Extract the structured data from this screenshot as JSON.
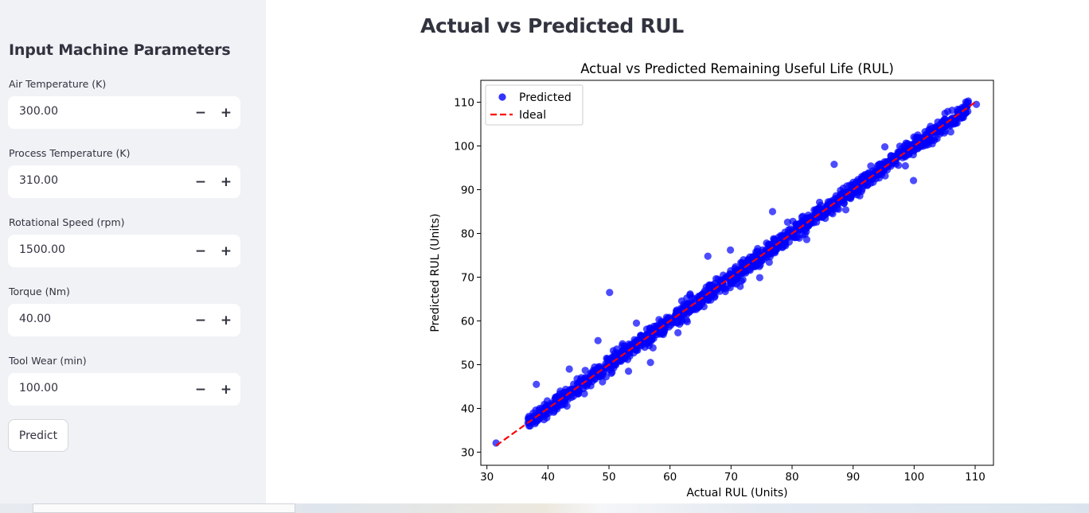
{
  "sidebar": {
    "title": "Input Machine Parameters",
    "fields": [
      {
        "label": "Air Temperature (K)",
        "value": "300.00"
      },
      {
        "label": "Process Temperature (K)",
        "value": "310.00"
      },
      {
        "label": "Rotational Speed (rpm)",
        "value": "1500.00"
      },
      {
        "label": "Torque (Nm)",
        "value": "40.00"
      },
      {
        "label": "Tool Wear (min)",
        "value": "100.00"
      }
    ],
    "minus_glyph": "−",
    "plus_glyph": "+",
    "predict_label": "Predict"
  },
  "main": {
    "heading": "Actual vs Predicted RUL"
  },
  "colors": {
    "sidebar_bg": "#f0f2f6",
    "scatter": "#0000ff",
    "ideal_line": "#ff0000"
  },
  "chart_data": {
    "type": "scatter",
    "title": "Actual vs Predicted Remaining Useful Life (RUL)",
    "xlabel": "Actual RUL (Units)",
    "ylabel": "Predicted RUL (Units)",
    "xlim": [
      29,
      113
    ],
    "ylim": [
      27,
      115
    ],
    "xticks": [
      30,
      40,
      50,
      60,
      70,
      80,
      90,
      100,
      110
    ],
    "yticks": [
      30,
      40,
      50,
      60,
      70,
      80,
      90,
      100,
      110
    ],
    "legend": {
      "position": "upper-left",
      "entries": [
        "Predicted",
        "Ideal"
      ]
    },
    "grid": false,
    "series": [
      {
        "name": "Predicted",
        "kind": "scatter",
        "color": "#0000ff",
        "points": [
          [
            31.5,
            32.1
          ],
          [
            36.8,
            37.5
          ],
          [
            38.1,
            45.5
          ],
          [
            40.2,
            39.0
          ],
          [
            43.5,
            49.0
          ],
          [
            48.2,
            55.5
          ],
          [
            50.1,
            66.5
          ],
          [
            51.0,
            52.0
          ],
          [
            53.2,
            48.5
          ],
          [
            54.5,
            59.5
          ],
          [
            56.8,
            50.5
          ],
          [
            58.9,
            56.9
          ],
          [
            61.3,
            57.3
          ],
          [
            62.7,
            60.2
          ],
          [
            66.2,
            74.8
          ],
          [
            69.9,
            76.2
          ],
          [
            71.5,
            67.9
          ],
          [
            74.7,
            69.9
          ],
          [
            76.8,
            85.0
          ],
          [
            82.4,
            78.6
          ],
          [
            86.9,
            95.8
          ],
          [
            88.8,
            85.4
          ],
          [
            91.1,
            88.6
          ],
          [
            95.2,
            99.8
          ],
          [
            99.9,
            92.1
          ],
          [
            104.0,
            103.5
          ],
          [
            106.0,
            103.2
          ],
          [
            107.7,
            107.1
          ],
          [
            110.2,
            109.5
          ],
          [
            103.5,
            104.2
          ]
        ],
        "band": {
          "x_range": [
            36.5,
            109
          ],
          "spread": 1.8,
          "count": 1300
        }
      },
      {
        "name": "Ideal",
        "kind": "line",
        "style": "dashed",
        "color": "#ff0000",
        "x": [
          31.5,
          110.2
        ],
        "y": [
          31.5,
          110.2
        ]
      }
    ]
  }
}
